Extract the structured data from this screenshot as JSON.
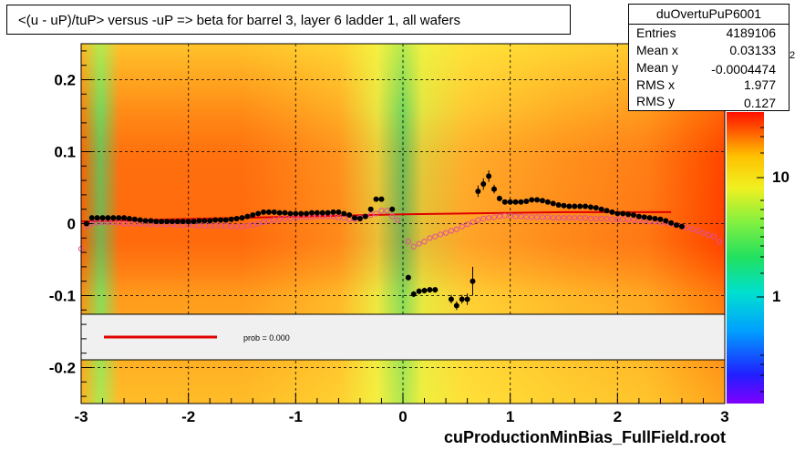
{
  "title": "<(u - uP)/tuP> versus  -uP => beta for barrel 3, layer 6 ladder 1, all wafers",
  "footer": "cuProductionMinBias_FullField.root",
  "stats": {
    "name": "duOvertuPuP6001",
    "rows": [
      {
        "label": "Entries",
        "value": "4189106"
      },
      {
        "label": "Mean x",
        "value": "0.03133"
      },
      {
        "label": "Mean y",
        "value": "-0.0004474"
      },
      {
        "label": "RMS x",
        "value": "1.977"
      },
      {
        "label": "RMS y",
        "value": "0.127"
      }
    ]
  },
  "legend": {
    "text": "prob = 0.000",
    "line_color": "#e00000"
  },
  "colors": {
    "fit": "#e00000",
    "profile": "#000000",
    "open_markers": "#e0509a"
  },
  "chart_data": {
    "type": "heatmap",
    "xlim": [
      -3,
      3
    ],
    "ylim": [
      -0.25,
      0.25
    ],
    "x_ticks": [
      "-3",
      "-2",
      "-1",
      "0",
      "1",
      "2",
      "3"
    ],
    "y_ticks": [
      "0.2",
      "0.1",
      "0",
      "-0.1",
      "-0.2"
    ],
    "grid": true,
    "colorbar": {
      "log_scale": true,
      "tick_labels": [
        "1",
        "10"
      ],
      "exponent_label": "2"
    },
    "profile_black": {
      "x": [
        -2.95,
        -2.9,
        -2.85,
        -2.8,
        -2.75,
        -2.7,
        -2.65,
        -2.6,
        -2.55,
        -2.5,
        -2.45,
        -2.4,
        -2.35,
        -2.3,
        -2.25,
        -2.2,
        -2.15,
        -2.1,
        -2.05,
        -2.0,
        -1.95,
        -1.9,
        -1.85,
        -1.8,
        -1.75,
        -1.7,
        -1.65,
        -1.6,
        -1.55,
        -1.5,
        -1.45,
        -1.4,
        -1.35,
        -1.3,
        -1.25,
        -1.2,
        -1.15,
        -1.1,
        -1.05,
        -1.0,
        -0.95,
        -0.9,
        -0.85,
        -0.8,
        -0.75,
        -0.7,
        -0.65,
        -0.6,
        -0.55,
        -0.5,
        -0.45,
        -0.4,
        -0.35,
        -0.3,
        -0.25,
        -0.2,
        -0.15,
        -0.1,
        -0.05,
        0.05,
        0.1,
        0.15,
        0.2,
        0.25,
        0.3,
        0.35,
        0.45,
        0.5,
        0.55,
        0.6,
        0.65,
        0.7,
        0.75,
        0.8,
        0.85,
        0.9,
        0.95,
        1.0,
        1.05,
        1.1,
        1.15,
        1.2,
        1.25,
        1.3,
        1.35,
        1.4,
        1.45,
        1.5,
        1.55,
        1.6,
        1.65,
        1.7,
        1.75,
        1.8,
        1.85,
        1.9,
        1.95,
        2.0,
        2.05,
        2.1,
        2.15,
        2.2,
        2.25,
        2.3,
        2.35,
        2.4,
        2.45,
        2.5,
        2.55,
        2.6,
        2.65,
        2.7,
        2.75,
        2.8,
        2.85
      ],
      "y": [
        0.0,
        0.008,
        0.008,
        0.008,
        0.008,
        0.008,
        0.008,
        0.008,
        0.007,
        0.006,
        0.005,
        0.004,
        0.004,
        0.003,
        0.003,
        0.003,
        0.003,
        0.003,
        0.003,
        0.003,
        0.003,
        0.004,
        0.004,
        0.004,
        0.005,
        0.005,
        0.005,
        0.006,
        0.007,
        0.008,
        0.01,
        0.012,
        0.014,
        0.016,
        0.016,
        0.016,
        0.015,
        0.015,
        0.014,
        0.014,
        0.014,
        0.014,
        0.015,
        0.015,
        0.015,
        0.015,
        0.016,
        0.016,
        0.014,
        0.012,
        0.008,
        0.007,
        0.01,
        0.02,
        0.034,
        0.034,
        null,
        0.02,
        null,
        -0.075,
        -0.098,
        -0.094,
        -0.093,
        -0.092,
        -0.092,
        null,
        -0.105,
        -0.114,
        -0.105,
        -0.105,
        -0.08,
        0.045,
        0.055,
        0.066,
        0.048,
        0.035,
        0.03,
        0.03,
        0.03,
        0.03,
        0.031,
        0.033,
        0.033,
        0.032,
        0.03,
        0.028,
        0.026,
        0.025,
        0.024,
        0.024,
        0.024,
        0.024,
        0.023,
        0.022,
        0.02,
        0.018,
        0.016,
        0.014,
        0.014,
        0.013,
        0.012,
        0.01,
        0.009,
        0.008,
        0.007,
        0.006,
        0.004,
        0.001,
        -0.002,
        -0.004
      ],
      "y_err": [
        0.002,
        0.002,
        0.002,
        0.002,
        0.002,
        0.002,
        0.002,
        0.002,
        0.002,
        0.002,
        0.002,
        0.002,
        0.002,
        0.002,
        0.002,
        0.002,
        0.002,
        0.002,
        0.002,
        0.002,
        0.002,
        0.002,
        0.002,
        0.002,
        0.002,
        0.002,
        0.002,
        0.002,
        0.002,
        0.002,
        0.002,
        0.002,
        0.002,
        0.002,
        0.002,
        0.002,
        0.002,
        0.002,
        0.002,
        0.002,
        0.002,
        0.002,
        0.002,
        0.002,
        0.002,
        0.002,
        0.002,
        0.002,
        0.002,
        0.002,
        0.002,
        0.002,
        0.002,
        0.003,
        0.003,
        0.003,
        0.0,
        0.003,
        0.0,
        0.004,
        0.004,
        0.004,
        0.004,
        0.004,
        0.004,
        0.0,
        0.006,
        0.006,
        0.006,
        0.008,
        0.02,
        0.008,
        0.008,
        0.008,
        0.006,
        0.004,
        0.003,
        0.002,
        0.002,
        0.002,
        0.002,
        0.002,
        0.002,
        0.002,
        0.002,
        0.002,
        0.002,
        0.002,
        0.002,
        0.002,
        0.002,
        0.002,
        0.002,
        0.002,
        0.002,
        0.002,
        0.002,
        0.002,
        0.002,
        0.002,
        0.002,
        0.002,
        0.002,
        0.002,
        0.002,
        0.002,
        0.002,
        0.002,
        0.002,
        0.002
      ]
    },
    "profile_open": {
      "x": [
        -3.0,
        -2.95,
        -2.9,
        -2.85,
        -2.8,
        -2.75,
        -2.7,
        -2.65,
        -2.6,
        -2.55,
        -2.5,
        -2.45,
        -2.4,
        -2.35,
        -2.3,
        -2.25,
        -2.2,
        -2.15,
        -2.1,
        -2.05,
        -2.0,
        -1.95,
        -1.9,
        -1.85,
        -1.8,
        -1.75,
        -1.7,
        -1.65,
        -1.6,
        -1.55,
        -1.5,
        -1.45,
        -1.4,
        -1.35,
        -1.3,
        -1.25,
        -1.2,
        -1.15,
        -1.1,
        -1.05,
        -1.0,
        -0.95,
        -0.9,
        -0.85,
        -0.8,
        -0.75,
        -0.7,
        -0.65,
        -0.6,
        -0.55,
        -0.5,
        -0.45,
        -0.4,
        -0.35,
        -0.3,
        -0.25,
        -0.2,
        -0.15,
        -0.1,
        -0.05,
        0.05,
        0.1,
        0.15,
        0.2,
        0.25,
        0.3,
        0.35,
        0.4,
        0.45,
        0.5,
        0.55,
        0.6,
        0.65,
        0.7,
        0.75,
        0.8,
        0.85,
        0.9,
        0.95,
        1.0,
        1.05,
        1.1,
        1.15,
        1.2,
        1.25,
        1.3,
        1.35,
        1.4,
        1.45,
        1.5,
        1.55,
        1.6,
        1.65,
        1.7,
        1.75,
        1.8,
        1.85,
        1.9,
        1.95,
        2.0,
        2.05,
        2.1,
        2.15,
        2.2,
        2.25,
        2.3,
        2.35,
        2.4,
        2.45,
        2.5,
        2.55,
        2.6,
        2.65,
        2.7,
        2.75,
        2.8,
        2.85,
        2.9,
        2.95
      ],
      "y": [
        -0.035,
        -0.004,
        0.0,
        0.001,
        0.002,
        0.002,
        0.002,
        0.001,
        0.0,
        0.0,
        0.0,
        0.0,
        0.0,
        -0.001,
        -0.001,
        -0.001,
        -0.001,
        -0.001,
        -0.002,
        -0.002,
        -0.002,
        -0.002,
        -0.003,
        -0.003,
        -0.003,
        -0.003,
        -0.003,
        -0.003,
        -0.004,
        -0.004,
        -0.004,
        -0.003,
        -0.002,
        0.0,
        0.002,
        0.004,
        0.005,
        0.006,
        0.007,
        0.007,
        0.008,
        0.009,
        0.009,
        0.009,
        0.01,
        0.01,
        0.01,
        0.01,
        0.008,
        0.008,
        0.006,
        0.006,
        0.008,
        0.01,
        0.012,
        0.014,
        0.018,
        0.018,
        0.01,
        0.005,
        -0.025,
        -0.032,
        -0.028,
        -0.025,
        -0.02,
        -0.018,
        -0.015,
        -0.013,
        -0.01,
        -0.008,
        -0.004,
        -0.001,
        0.002,
        0.005,
        0.007,
        0.008,
        0.009,
        0.01,
        0.011,
        0.011,
        0.01,
        0.01,
        0.009,
        0.009,
        0.009,
        0.009,
        0.009,
        0.008,
        0.008,
        0.008,
        0.008,
        0.008,
        0.008,
        0.008,
        0.007,
        0.007,
        0.007,
        0.007,
        0.006,
        0.006,
        0.006,
        0.006,
        0.005,
        0.005,
        0.004,
        0.003,
        0.003,
        0.002,
        0.001,
        0.0,
        -0.002,
        -0.004,
        -0.006,
        -0.008,
        -0.01,
        -0.013,
        -0.016,
        -0.018,
        -0.025,
        -0.03
      ]
    },
    "fit_line": {
      "x": [
        -3,
        -1.5,
        0,
        1.5,
        2.5
      ],
      "y": [
        0.003,
        0.008,
        0.013,
        0.016,
        0.016
      ]
    }
  }
}
